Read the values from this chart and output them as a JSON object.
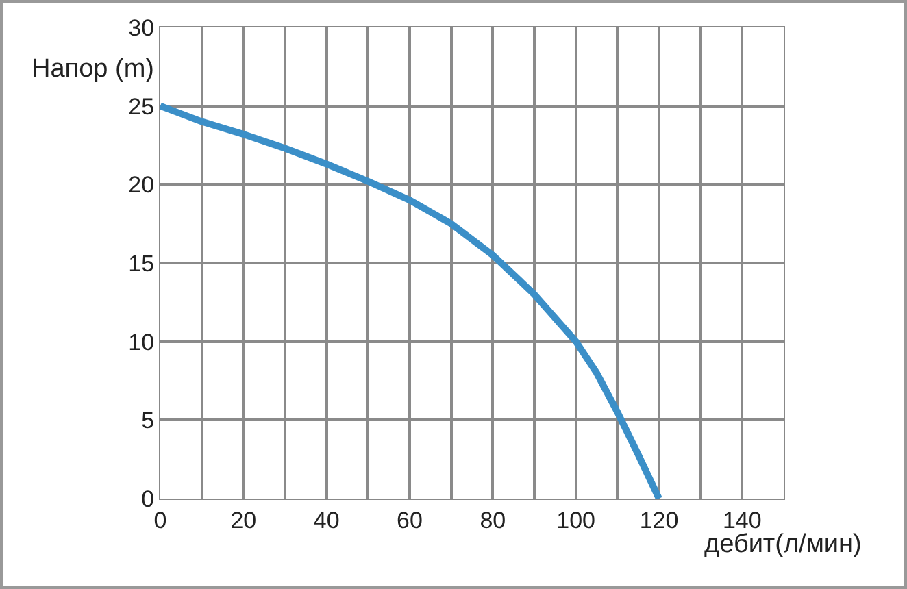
{
  "chart_data": {
    "type": "line",
    "xlabel": "дебит(л/мин)",
    "ylabel": "Напор (m)",
    "x": [
      0,
      10,
      20,
      30,
      40,
      50,
      60,
      70,
      80,
      90,
      100,
      105,
      110,
      115,
      120
    ],
    "series": [
      {
        "color": "#3b8fc8",
        "values": [
          25,
          24,
          23.2,
          22.3,
          21.3,
          20.2,
          19,
          17.5,
          15.5,
          13,
          10,
          8,
          5.5,
          2.8,
          0
        ]
      }
    ],
    "xlim": [
      0,
      150
    ],
    "xticks": [
      0,
      {
        "value": 10,
        "label": null
      },
      20,
      {
        "value": 30,
        "label": null
      },
      40,
      {
        "value": 50,
        "label": null
      },
      60,
      {
        "value": 70,
        "label": null
      },
      80,
      {
        "value": 90,
        "label": null
      },
      100,
      {
        "value": 110,
        "label": null
      },
      120,
      {
        "value": 130,
        "label": null
      },
      140,
      {
        "value": 150,
        "label": null
      }
    ],
    "ylim": [
      0,
      30
    ],
    "yticks": [
      0,
      5,
      10,
      15,
      20,
      25,
      30
    ],
    "grid": true,
    "marker": "none",
    "line_style": "solid"
  }
}
